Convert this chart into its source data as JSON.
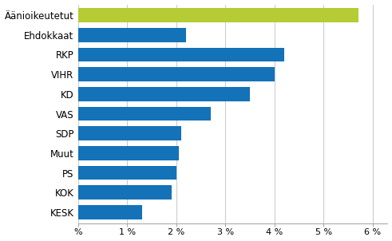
{
  "categories": [
    "Äänioikeutetut",
    "Ehdokkaat",
    "RKP",
    "VIHR",
    "KD",
    "VAS",
    "SDP",
    "Muut",
    "PS",
    "KOK",
    "KESK"
  ],
  "values": [
    5.7,
    2.2,
    4.2,
    4.0,
    3.5,
    2.7,
    2.1,
    2.05,
    2.0,
    1.9,
    1.3
  ],
  "bar_colors": [
    "#b5cc34",
    "#1472b8",
    "#1472b8",
    "#1472b8",
    "#1472b8",
    "#1472b8",
    "#1472b8",
    "#1472b8",
    "#1472b8",
    "#1472b8",
    "#1472b8"
  ],
  "xlim": [
    0,
    6.3
  ],
  "xtick_values": [
    0,
    1,
    2,
    3,
    4,
    5,
    6
  ],
  "xtick_labels": [
    "%",
    "1 %",
    "2 %",
    "3 %",
    "4 %",
    "5 %",
    "6 %"
  ],
  "background_color": "#ffffff",
  "grid_color": "#cccccc",
  "bar_height": 0.72,
  "label_fontsize": 8.5,
  "tick_fontsize": 8.0
}
